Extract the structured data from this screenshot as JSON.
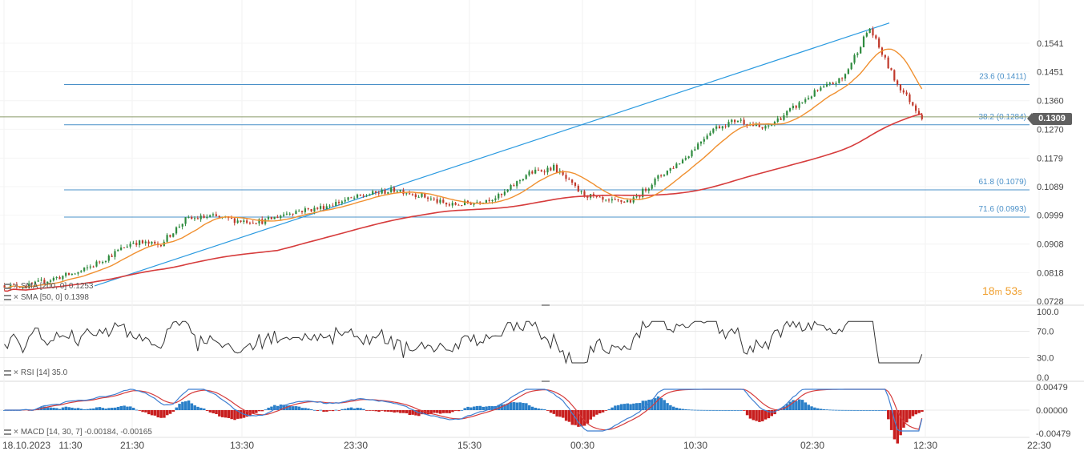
{
  "chart_data": [
    {
      "type": "candlestick",
      "pane": "price",
      "y_ticks": [
        "0.1541",
        "0.1451",
        "0.1360",
        "0.1270",
        "0.1179",
        "0.1089",
        "0.0999",
        "0.0908",
        "0.0818",
        "0.0728"
      ],
      "ylim": [
        0.0728,
        0.1541
      ],
      "last_price": "0.1309",
      "countdown": {
        "minutes": "18",
        "m": "m",
        "seconds": "53",
        "s": "s"
      },
      "fibonacci_levels": [
        {
          "label": "23.6 (0.1411)",
          "value": 0.1411
        },
        {
          "label": "38.2 (0.1284)",
          "value": 0.1284
        },
        {
          "label": "61.8 (0.1079)",
          "value": 0.1079
        },
        {
          "label": "71.6 (0.0993)",
          "value": 0.0993
        }
      ],
      "trend_line": {
        "from_time": "21:30",
        "from_value": 0.0776,
        "to_time": "11:30",
        "to_value": 0.1605
      },
      "indicators": [
        {
          "legend": "SMA [200, 0] 0.1253",
          "color": "#d63c3c"
        },
        {
          "legend": "SMA [50, 0] 0.1398",
          "color": "#f09030"
        }
      ],
      "price_path": [
        [
          "11:30",
          0.0778
        ],
        [
          "21:30",
          0.0775
        ],
        [
          "02:30",
          0.08
        ],
        [
          "07:30",
          0.082
        ],
        [
          "11:30",
          0.0865
        ],
        [
          "15:30",
          0.0915
        ],
        [
          "19:30",
          0.0905
        ],
        [
          "23:00",
          0.0985
        ],
        [
          "23:30",
          0.0995
        ],
        [
          "03:30",
          0.0982
        ],
        [
          "07:30",
          0.098
        ],
        [
          "11:30",
          0.101
        ],
        [
          "15:30",
          0.102
        ],
        [
          "19:30",
          0.1045
        ],
        [
          "21:30",
          0.1065
        ],
        [
          "23:00",
          0.108
        ],
        [
          "00:00",
          0.106
        ],
        [
          "00:30",
          0.103
        ],
        [
          "02:30",
          0.104
        ],
        [
          "04:30",
          0.106
        ],
        [
          "06:30",
          0.113
        ],
        [
          "08:30",
          0.115
        ],
        [
          "10:30",
          0.107
        ],
        [
          "12:30",
          0.104
        ],
        [
          "14:30",
          0.1045
        ],
        [
          "16:30",
          0.112
        ],
        [
          "20:30",
          0.118
        ],
        [
          "00:30",
          0.127
        ],
        [
          "02:30",
          0.13
        ],
        [
          "04:30",
          0.127
        ],
        [
          "06:30",
          0.133
        ],
        [
          "08:30",
          0.139
        ],
        [
          "10:00",
          0.143
        ],
        [
          "11:30",
          0.159
        ],
        [
          "12:00",
          0.142
        ],
        [
          "12:30",
          0.1309
        ]
      ]
    },
    {
      "type": "line",
      "pane": "rsi",
      "legend": "RSI [14] 35.0",
      "y_ticks": [
        "100.0",
        "70.0",
        "30.0",
        "0.0"
      ],
      "ylim": [
        0,
        100
      ],
      "guide_levels": [
        70,
        30
      ],
      "last_value": 35.0
    },
    {
      "type": "bar+line",
      "pane": "macd",
      "legend": "MACD [14, 30, 7] -0.00184, -0.00165",
      "y_ticks": [
        "0.00479",
        "0.00000",
        "-0.00479"
      ],
      "ylim": [
        -0.00479,
        0.00479
      ],
      "values": [
        -0.00184,
        -0.00165
      ]
    }
  ],
  "x_axis": {
    "start_label": "18.10.2023",
    "labels": [
      "11:30",
      "21:30",
      "13:30",
      "23:30",
      "15:30",
      "00:30",
      "10:30",
      "02:30",
      "12:30",
      "22:30"
    ]
  },
  "colors": {
    "up": "#2e8b3e",
    "down": "#c0392b",
    "fib": "#4a90c8",
    "trend": "#2a9ae0",
    "sma200": "#d63c3c",
    "sma50": "#f09030",
    "rsi": "#333333",
    "macd_line": "#3e7fd1",
    "macd_signal": "#d63c3c",
    "hist_pos": "#2a7fc8",
    "hist_neg": "#c81e1e"
  }
}
